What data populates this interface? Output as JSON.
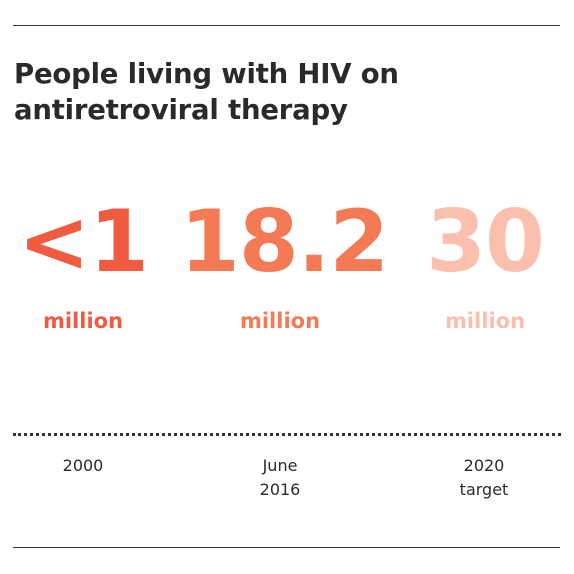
{
  "title": "People living with HIV on antiretroviral therapy",
  "stats": [
    {
      "value": "<1",
      "unit": "million",
      "color": "#f05a40",
      "label_lines": [
        "2000"
      ]
    },
    {
      "value": "18.2",
      "unit": "million",
      "color": "#f47a56",
      "label_lines": [
        "June",
        "2016"
      ]
    },
    {
      "value": "30",
      "unit": "million",
      "color": "#fbbfae",
      "label_lines": [
        "2020",
        "target"
      ]
    }
  ]
}
